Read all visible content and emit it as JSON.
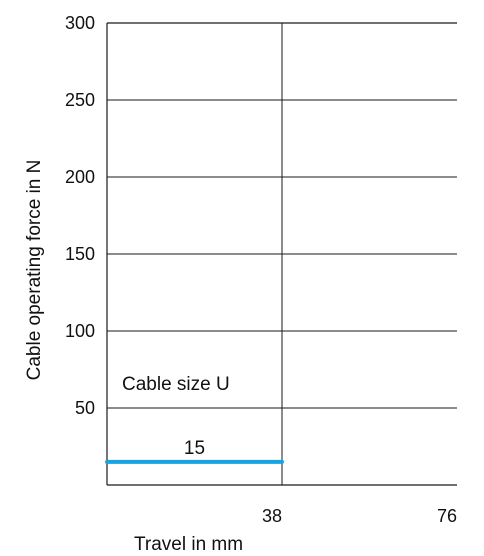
{
  "chart_data": {
    "type": "line",
    "title": "",
    "xlabel": "Travel in mm",
    "ylabel": "Cable operating force in N",
    "xlim": [
      0,
      76
    ],
    "ylim": [
      0,
      300
    ],
    "x_ticks": [
      "38",
      "76"
    ],
    "y_ticks": [
      "50",
      "100",
      "150",
      "200",
      "250",
      "300"
    ],
    "grid": true,
    "legend": "none",
    "annotation": "Cable size U",
    "series": [
      {
        "label": "15",
        "color": "#1aa3e0",
        "x": [
          0,
          38
        ],
        "y": [
          15,
          15
        ]
      }
    ],
    "colors": {
      "grid": "#1a1a1a",
      "series": "#1aa3e0",
      "text": "#111111"
    }
  }
}
